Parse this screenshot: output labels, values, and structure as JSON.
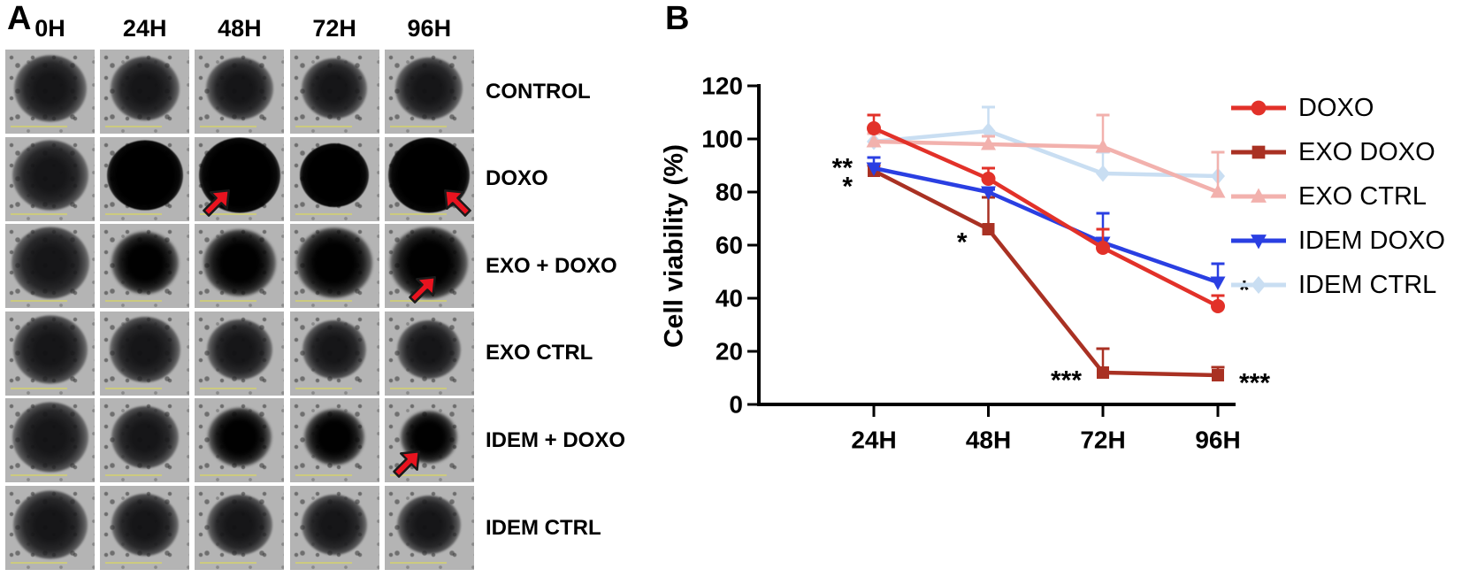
{
  "figure": {
    "panel_a": {
      "label": "A",
      "columns": [
        "0H",
        "24H",
        "48H",
        "72H",
        "96H"
      ],
      "arrow_color": "#e8131f",
      "rows": [
        {
          "label": "CONTROL",
          "cells": [
            {
              "tone": "gray",
              "size": 82
            },
            {
              "tone": "gray",
              "size": 78
            },
            {
              "tone": "gray",
              "size": 76
            },
            {
              "tone": "gray",
              "size": 74
            },
            {
              "tone": "gray",
              "size": 76
            }
          ]
        },
        {
          "label": "DOXO",
          "cells": [
            {
              "tone": "gray",
              "size": 86
            },
            {
              "tone": "black",
              "size": 86
            },
            {
              "tone": "black",
              "size": 92,
              "arrow": "ne"
            },
            {
              "tone": "black",
              "size": 78
            },
            {
              "tone": "black",
              "size": 92,
              "arrow": "nw"
            }
          ]
        },
        {
          "label": "EXO + DOXO",
          "cells": [
            {
              "tone": "gray",
              "size": 88
            },
            {
              "tone": "fuzzy",
              "size": 76
            },
            {
              "tone": "fuzzy",
              "size": 82
            },
            {
              "tone": "fuzzy",
              "size": 86
            },
            {
              "tone": "fuzzy",
              "size": 88,
              "arrow": "ne"
            }
          ]
        },
        {
          "label": "EXO CTRL",
          "cells": [
            {
              "tone": "gray",
              "size": 84
            },
            {
              "tone": "gray",
              "size": 80
            },
            {
              "tone": "gray",
              "size": 74
            },
            {
              "tone": "gray",
              "size": 72
            },
            {
              "tone": "gray",
              "size": 72
            }
          ]
        },
        {
          "label": "IDEM + DOXO",
          "cells": [
            {
              "tone": "gray",
              "size": 86
            },
            {
              "tone": "gray",
              "size": 76
            },
            {
              "tone": "fuzzy",
              "size": 72
            },
            {
              "tone": "fuzzy",
              "size": 68
            },
            {
              "tone": "fuzzy",
              "size": 64,
              "arrow": "ne"
            }
          ]
        },
        {
          "label": "IDEM CTRL",
          "cells": [
            {
              "tone": "gray",
              "size": 84
            },
            {
              "tone": "gray",
              "size": 76
            },
            {
              "tone": "gray",
              "size": 74
            },
            {
              "tone": "gray",
              "size": 74
            },
            {
              "tone": "gray",
              "size": 72
            }
          ]
        }
      ]
    },
    "panel_b": {
      "label": "B"
    }
  },
  "chart_data": {
    "type": "line",
    "title": "",
    "xlabel": "",
    "ylabel": "Cell viability (%)",
    "categories": [
      "24H",
      "48H",
      "72H",
      "96H"
    ],
    "ylim": [
      0,
      120
    ],
    "yticks": [
      0,
      20,
      40,
      60,
      80,
      100,
      120
    ],
    "grid": false,
    "legend_position": "right",
    "error_bars": "upper-only",
    "series": [
      {
        "name": "DOXO",
        "color": "#e23129",
        "marker": "circle",
        "values": [
          104,
          85,
          59,
          37
        ],
        "errors_up": [
          5,
          4,
          7,
          4
        ]
      },
      {
        "name": "EXO DOXO",
        "color": "#a93123",
        "marker": "square",
        "values": [
          88,
          66,
          12,
          11
        ],
        "errors_up": [
          2,
          12,
          9,
          3
        ]
      },
      {
        "name": "EXO CTRL",
        "color": "#f2b1ad",
        "marker": "triangle-up",
        "values": [
          99,
          98,
          97,
          80
        ],
        "errors_up": [
          3,
          3,
          12,
          15
        ]
      },
      {
        "name": "IDEM DOXO",
        "color": "#2a3fe2",
        "marker": "triangle-down",
        "values": [
          89,
          80,
          61,
          46
        ],
        "errors_up": [
          4,
          1,
          11,
          7
        ]
      },
      {
        "name": "IDEM CTRL",
        "color": "#c9def2",
        "marker": "diamond",
        "values": [
          99,
          103,
          87,
          86
        ],
        "errors_up": [
          3,
          9,
          8,
          9
        ]
      }
    ],
    "annotations": [
      {
        "text": "**",
        "category": "24H",
        "value": 92,
        "side": "left"
      },
      {
        "text": "*",
        "category": "24H",
        "value": 85,
        "side": "left"
      },
      {
        "text": "*",
        "category": "48H",
        "value": 64,
        "side": "left"
      },
      {
        "text": "***",
        "category": "72H",
        "value": 12,
        "side": "left"
      },
      {
        "text": "***",
        "category": "96H",
        "value": 11,
        "side": "right"
      },
      {
        "text": "*",
        "category": "96H",
        "value": 46,
        "side": "right"
      }
    ]
  }
}
